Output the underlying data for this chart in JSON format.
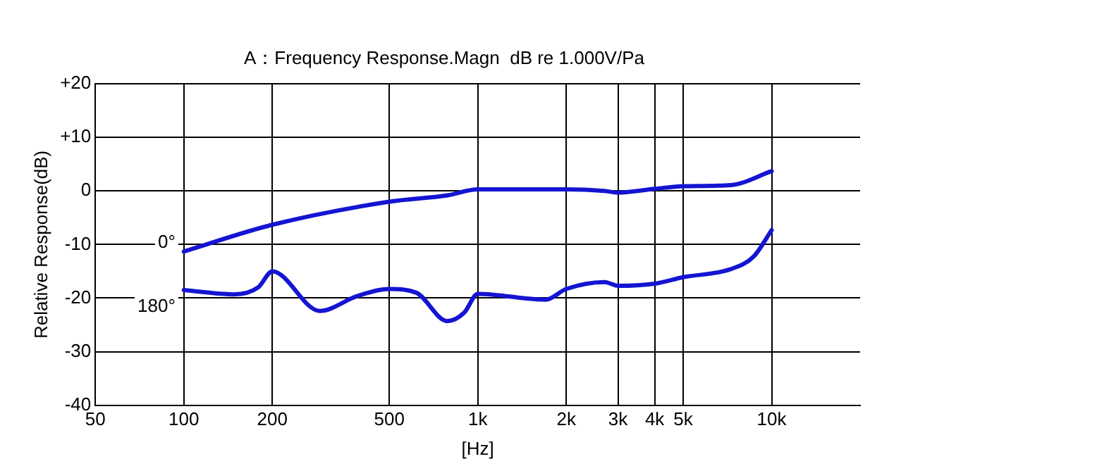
{
  "chart_data": {
    "type": "line",
    "title": "A：Frequency Response.Magn  dB re 1.000V/Pa",
    "xlabel": "[Hz]",
    "ylabel": "Relative Response(dB)",
    "log": "x",
    "xlim": [
      50,
      20000
    ],
    "xticks": [
      50,
      100,
      200,
      500,
      {
        "value": 1000,
        "label": "1k"
      },
      {
        "value": 2000,
        "label": "2k"
      },
      {
        "value": 3000,
        "label": "3k"
      },
      {
        "value": 4000,
        "label": "4k"
      },
      {
        "value": 5000,
        "label": "5k"
      },
      {
        "value": 10000,
        "label": "10k"
      }
    ],
    "ylim": [
      -40,
      20
    ],
    "yticks": [
      {
        "value": 20,
        "label": "+20"
      },
      {
        "value": 10,
        "label": "+10"
      },
      0,
      -10,
      -20,
      -30,
      -40
    ],
    "grid": true,
    "legend": false,
    "marker": "none",
    "line_style": "solid",
    "series": [
      {
        "name": "0°",
        "color": "#1414d2",
        "x": [
          100,
          200,
          500,
          790,
          1000,
          2000,
          2700,
          3000,
          4000,
          5000,
          7250,
          10000
        ],
        "values": [
          -11.3,
          -6.3,
          -2,
          -0.8,
          0.3,
          0.3,
          0,
          -0.3,
          0.4,
          0.9,
          1.1,
          3.7
        ]
      },
      {
        "name": "180°",
        "color": "#1414d2",
        "x": [
          100,
          148,
          179,
          200,
          290,
          390,
          500,
          618,
          788,
          900,
          1000,
          1700,
          2000,
          2700,
          3000,
          4000,
          5000,
          7250,
          8700,
          10000
        ],
        "values": [
          -18.5,
          -19.3,
          -18,
          -15,
          -22.4,
          -19.6,
          -18.3,
          -19,
          -24.3,
          -22.7,
          -19.2,
          -20.3,
          -18.3,
          -17,
          -17.7,
          -17.3,
          -16.1,
          -14.6,
          -12.2,
          -7.3
        ]
      }
    ]
  }
}
